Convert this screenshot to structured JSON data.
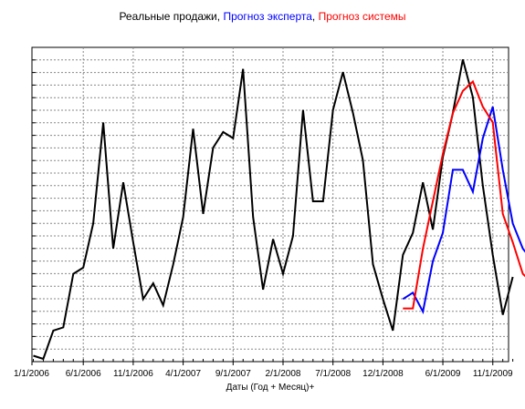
{
  "chart_data": {
    "type": "line",
    "title": {
      "parts": [
        {
          "text": "Реальные продажи",
          "color": "#000000"
        },
        {
          "text": ", ",
          "color": "#000000"
        },
        {
          "text": "Прогноз эксперта",
          "color": "#0000ff"
        },
        {
          "text": ", ",
          "color": "#000000"
        },
        {
          "text": "Прогноз системы",
          "color": "#ff0000"
        }
      ]
    },
    "xlabel": "Даты (Год + Месяц)+",
    "ylabel": "",
    "grid": true,
    "x_tick_labels": [
      "1/1/2006",
      "6/1/2006",
      "11/1/2006",
      "4/1/2007",
      "9/1/2007",
      "2/1/2008",
      "7/1/2008",
      "12/1/2008",
      "6/1/2009",
      "11/1/2009"
    ],
    "series": [
      {
        "name": "Реальные продажи",
        "color": "#000000",
        "start_index": 0,
        "values": [
          1,
          0,
          9,
          10,
          27,
          29,
          43,
          75,
          35,
          56,
          37,
          19,
          24,
          17,
          30,
          45,
          73,
          46,
          67,
          72,
          70,
          92,
          45,
          22,
          38,
          27,
          39,
          79,
          50,
          50,
          79,
          91,
          78,
          63,
          30,
          19,
          9,
          33,
          40,
          56,
          41,
          64,
          78,
          95,
          83,
          55,
          33,
          14,
          26
        ]
      },
      {
        "name": "Прогноз эксперта",
        "color": "#0000ff",
        "start_index": 37,
        "values": [
          19,
          21,
          15,
          31,
          40,
          60,
          60,
          53,
          70,
          80,
          60,
          43,
          35,
          31
        ]
      },
      {
        "name": "Прогноз системы",
        "color": "#ff0000",
        "start_index": 37,
        "values": [
          16,
          16,
          35,
          50,
          65,
          78,
          85,
          88,
          80,
          75,
          46,
          37,
          27,
          24
        ]
      }
    ]
  }
}
